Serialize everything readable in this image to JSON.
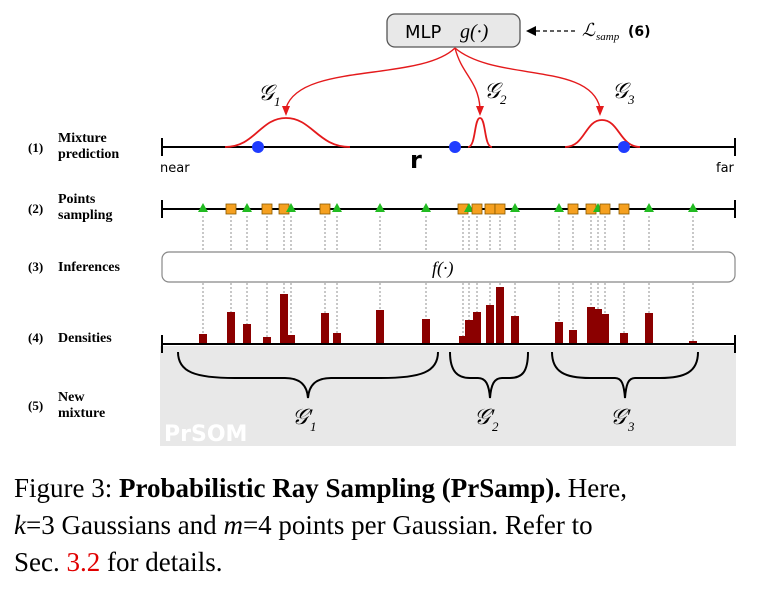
{
  "mlp": {
    "label": "MLP",
    "func": "g(·)"
  },
  "loss": {
    "symbol": "ℒ",
    "subscript": "samp",
    "eq": "(6)"
  },
  "gaussians": [
    {
      "label": "𝒢",
      "sub": "1"
    },
    {
      "label": "𝒢",
      "sub": "2"
    },
    {
      "label": "𝒢",
      "sub": "3"
    }
  ],
  "new_gaussians": [
    {
      "label": "𝒢′",
      "sub": "1"
    },
    {
      "label": "𝒢′",
      "sub": "2"
    },
    {
      "label": "𝒢′",
      "sub": "3"
    }
  ],
  "ray": {
    "symbol": "r",
    "near": "near",
    "far": "far"
  },
  "rows": [
    {
      "num": "(1)",
      "line1": "Mixture",
      "line2": "prediction"
    },
    {
      "num": "(2)",
      "line1": "Points",
      "line2": "sampling"
    },
    {
      "num": "(3)",
      "line1": "Inferences",
      "line2": ""
    },
    {
      "num": "(4)",
      "line1": "Densities",
      "line2": ""
    },
    {
      "num": "(5)",
      "line1": "New",
      "line2": "mixture"
    }
  ],
  "inference_func": "f(·)",
  "watermark": "PrSOM",
  "colors": {
    "red": "#e41a1c",
    "blue": "#1f3cff",
    "green": "#22bb22",
    "orange": "#f5a020",
    "bar": "#8b0000",
    "panel": "#e8e8e8"
  },
  "caption": {
    "fig": "Figure 3:",
    "bold": "Probabilistic Ray Sampling (PrSamp).",
    "t1": " Here,",
    "k": "k",
    "t2": "=3 Gaussians and ",
    "m": "m",
    "t3": "=4 points per Gaussian.  Refer to",
    "t4": "Sec. ",
    "ref": "3.2",
    "t5": " for details."
  }
}
